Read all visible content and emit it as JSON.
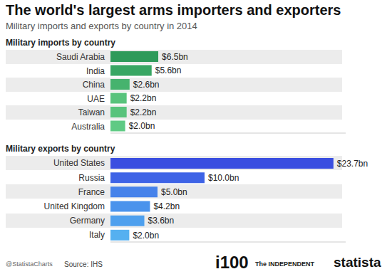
{
  "title": "The world's largest arms importers and exporters",
  "subtitle": "Military imports and exports by country in 2014",
  "chart_data": [
    {
      "type": "bar",
      "orientation": "horizontal",
      "title": "Military imports by country",
      "categories": [
        "Saudi Arabia",
        "India",
        "China",
        "UAE",
        "Taiwan",
        "Australia"
      ],
      "values": [
        6.5,
        5.6,
        2.6,
        2.2,
        2.2,
        2.0
      ],
      "value_labels": [
        "$6.5bn",
        "$5.6bn",
        "$2.6bn",
        "$2.2bn",
        "$2.2bn",
        "$2.0bn"
      ],
      "colors": [
        "#2e9a5a",
        "#38a663",
        "#46b36e",
        "#58c37c",
        "#58c37c",
        "#5fca84"
      ],
      "xlim": [
        0,
        32
      ],
      "data_labels": true,
      "tick_labels": "y"
    },
    {
      "type": "bar",
      "orientation": "horizontal",
      "title": "Military exports by country",
      "categories": [
        "United States",
        "Russia",
        "France",
        "United Kingdom",
        "Germany",
        "Italy"
      ],
      "values": [
        23.7,
        10.0,
        5.0,
        4.2,
        3.6,
        2.0
      ],
      "value_labels": [
        "$23.7bn",
        "$10.0bn",
        "$5.0bn",
        "$4.2bn",
        "$3.6bn",
        "$2.0bn"
      ],
      "colors": [
        "#3a4ee0",
        "#3e63e6",
        "#4682ea",
        "#4a93ec",
        "#4ea0ee",
        "#55b0f0"
      ],
      "xlim": [
        0,
        25
      ],
      "data_labels": true,
      "tick_labels": "y"
    }
  ],
  "footer": {
    "handle": "@StatistaCharts",
    "source": "Source: IHS",
    "brand1": "i100",
    "brand2": "The INDEPENDENT",
    "brand3": "statista"
  }
}
